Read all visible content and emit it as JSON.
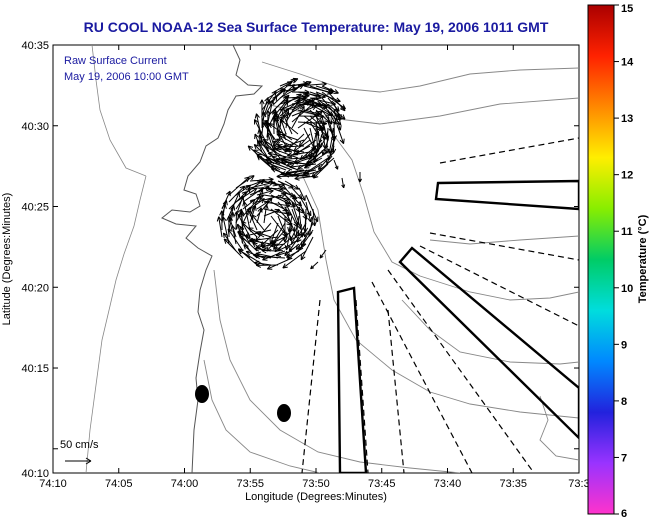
{
  "title": "RU COOL  NOAA-12  Sea Surface Temperature:  May 19, 2006 1011 GMT",
  "annotation": {
    "line1": "Raw Surface Current",
    "line2": "May 19, 2006 10:00 GMT"
  },
  "scale_label": "50 cm/s",
  "x_axis": {
    "label": "Longitude (Degrees:Minutes)",
    "ticks": [
      "74:10",
      "74:05",
      "74:00",
      "73:55",
      "73:50",
      "73:45",
      "73:40",
      "73:35",
      "73:3"
    ]
  },
  "y_axis": {
    "label": "Latitude (Degrees:Minutes)",
    "ticks": [
      "40:35",
      "40:30",
      "40:25",
      "40:20",
      "40:15",
      "40:10"
    ]
  },
  "colorbar": {
    "label": "Temperature (°C)",
    "ticks": [
      "15",
      "14",
      "13",
      "12",
      "11",
      "10",
      "9",
      "8",
      "7",
      "6"
    ],
    "min": 6,
    "max": 15,
    "colors": [
      "#ff33cc",
      "#9933ff",
      "#2222dd",
      "#0088ff",
      "#00dddd",
      "#00cc66",
      "#88ee00",
      "#ffee00",
      "#ff8800",
      "#ff2200",
      "#aa0000"
    ]
  },
  "colors": {
    "title": "#1a1aa0",
    "annotation": "#1a1aa0",
    "vectors": "#000000",
    "contours": "#888888"
  }
}
